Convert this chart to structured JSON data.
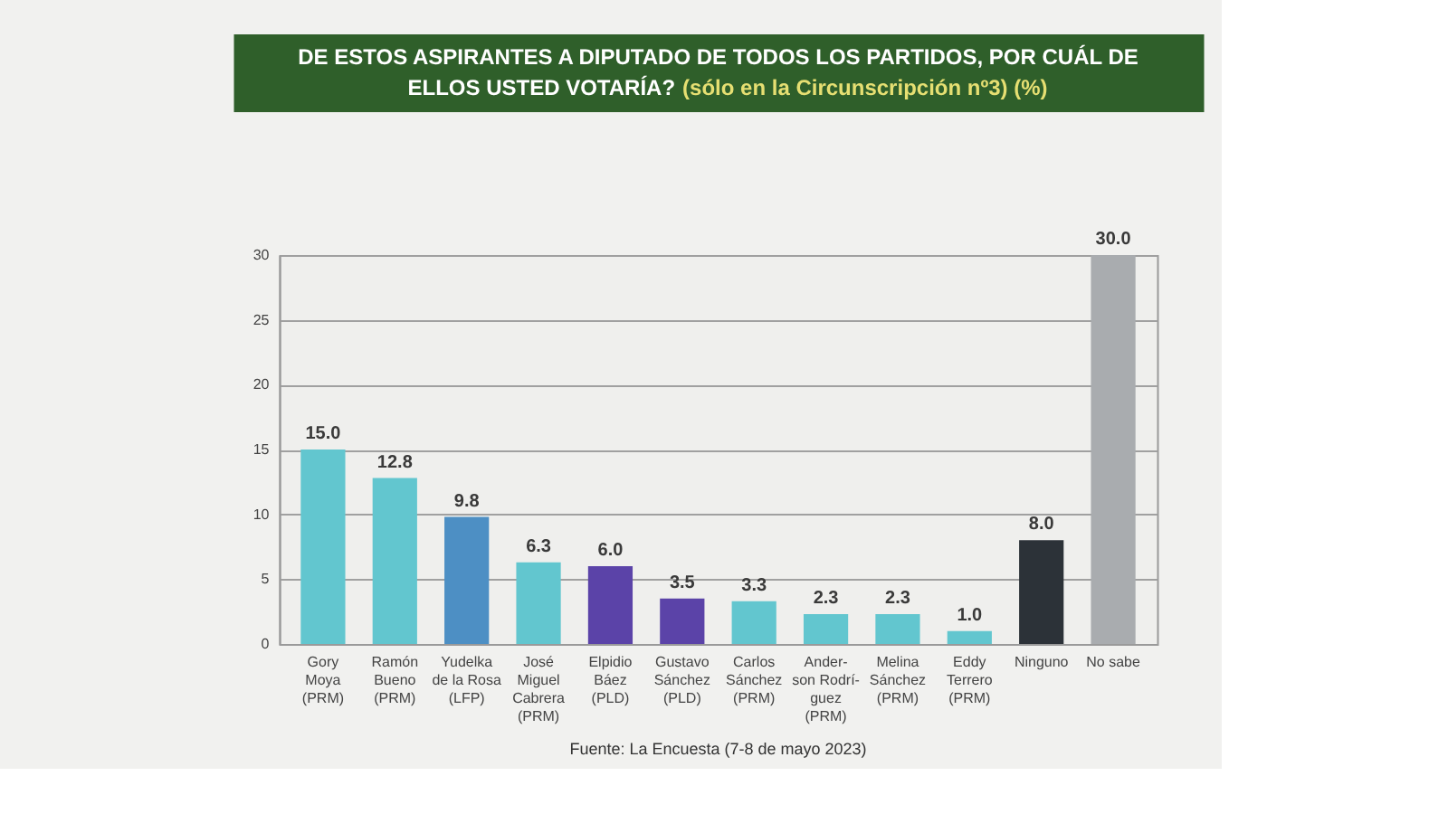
{
  "chart_data": {
    "type": "bar",
    "title": "DE ESTOS ASPIRANTES A DIPUTADO DE TODOS LOS PARTIDOS, POR CUÁL DE\nELLOS USTED VOTARÍA? (sólo en la Circunscripción nº3) (%)",
    "categories": [
      "Gory\nMoya\n(PRM)",
      "Ramón\nBueno\n(PRM)",
      "Yudelka\nde la Rosa\n(LFP)",
      "José\nMiguel\nCabrera\n(PRM)",
      "Elpidio\nBáez\n(PLD)",
      "Gustavo\nSánchez\n(PLD)",
      "Carlos\nSánchez\n(PRM)",
      "Ander-\nson Rodrí-\nguez\n(PRM)",
      "Melina\nSánchez\n(PRM)",
      "Eddy\nTerrero\n(PRM)",
      "Ninguno",
      "No sabe"
    ],
    "values": [
      15.0,
      12.8,
      9.8,
      6.3,
      6.0,
      3.5,
      3.3,
      2.3,
      2.3,
      1.0,
      8.0,
      30.0
    ],
    "colors": [
      "#62c6cf",
      "#62c6cf",
      "#4d8fc4",
      "#62c6cf",
      "#5b43a8",
      "#5b43a8",
      "#62c6cf",
      "#62c6cf",
      "#62c6cf",
      "#62c6cf",
      "#2c3238",
      "#a9acaf"
    ],
    "value_labels": [
      "15.0",
      "12.8",
      "9.8",
      "6.3",
      "6.0",
      "3.5",
      "3.3",
      "2.3",
      "2.3",
      "1.0",
      "8.0",
      "30.0"
    ],
    "ylim": [
      0,
      30
    ],
    "yticks": [
      0,
      5,
      10,
      15,
      20,
      25,
      30
    ],
    "grid": "y",
    "annotations": [
      "Fuente: La Encuesta (7-8 de mayo 2023)"
    ]
  }
}
